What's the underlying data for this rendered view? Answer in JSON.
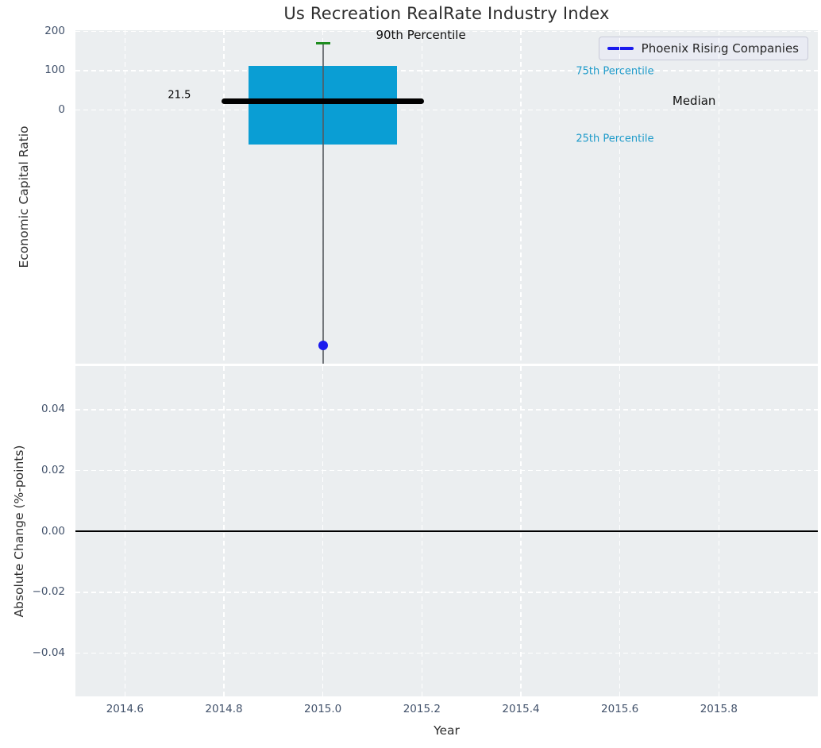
{
  "figure": {
    "background": "#ffffff",
    "axes_background": "#ebeef0",
    "grid_color": "#ffffff",
    "tick_color": "#42526b",
    "text_color": "#2e2e2e"
  },
  "chart_data": [
    {
      "type": "boxplot",
      "title": "Us Recreation RealRate Industry Index",
      "ylabel": "Economic Capital Ratio",
      "xlim": [
        2014.5,
        2016.0
      ],
      "ylim": [
        -647,
        203
      ],
      "grid": true,
      "yticks": [
        200,
        100,
        0
      ],
      "ytick_labels": [
        "200",
        "100",
        "0"
      ],
      "xticks": [
        2014.6,
        2014.8,
        2015.0,
        2015.2,
        2015.4,
        2015.6,
        2015.8
      ],
      "xtick_labels_shown": false,
      "legend": {
        "position": "upper right",
        "entries": [
          {
            "label": "Phoenix Rising Companies",
            "color": "#1a1aee"
          }
        ]
      },
      "box": {
        "x": 2015.0,
        "p90": 170,
        "q3": 112,
        "median": 21.5,
        "q1": -89,
        "whisker_low_clipped_below_axis": true,
        "box_halfwidth_years": 0.15,
        "median_halfwidth_years": 0.205,
        "cap_halfwidth_years": 0.0145,
        "colors": {
          "box": "#0a9ed4",
          "median": "#000000",
          "cap": "#1d8c1f",
          "whisker": "#55595e"
        }
      },
      "points": [
        {
          "name": "Phoenix Rising Companies",
          "x": 2015.0,
          "y": -600,
          "color": "#1a1aee",
          "diameter": 12
        }
      ],
      "annotations": [
        {
          "text": "90th Percentile",
          "x": 2015.198,
          "y": 191,
          "color": "#111111",
          "size": 15
        },
        {
          "text": "75th Percentile",
          "x": 2015.59,
          "y": 97,
          "color": "#1f9bca",
          "size": 13
        },
        {
          "text": "Median",
          "x": 2015.75,
          "y": 23,
          "color": "#111111",
          "size": 15
        },
        {
          "text": "25th Percentile",
          "x": 2015.59,
          "y": -75,
          "color": "#1f9bca",
          "size": 13
        },
        {
          "text": "21.5",
          "x": 2014.71,
          "y": 37,
          "color": "#000000",
          "size": 13
        }
      ]
    },
    {
      "type": "line",
      "xlabel": "Year",
      "ylabel": "Absolute Change (%-points)",
      "xlim": [
        2014.5,
        2016.0
      ],
      "ylim": [
        -0.0542,
        0.0543
      ],
      "grid": true,
      "yticks": [
        0.04,
        0.02,
        0.0,
        -0.02,
        -0.04
      ],
      "ytick_labels": [
        "0.04",
        "0.02",
        "0.00",
        "−0.02",
        "−0.04"
      ],
      "xticks": [
        2014.6,
        2014.8,
        2015.0,
        2015.2,
        2015.4,
        2015.6,
        2015.8
      ],
      "xtick_labels": [
        "2014.6",
        "2014.8",
        "2015.0",
        "2015.2",
        "2015.4",
        "2015.6",
        "2015.8"
      ],
      "zero_line": {
        "y": 0.0,
        "color": "#000000"
      },
      "series": []
    }
  ]
}
